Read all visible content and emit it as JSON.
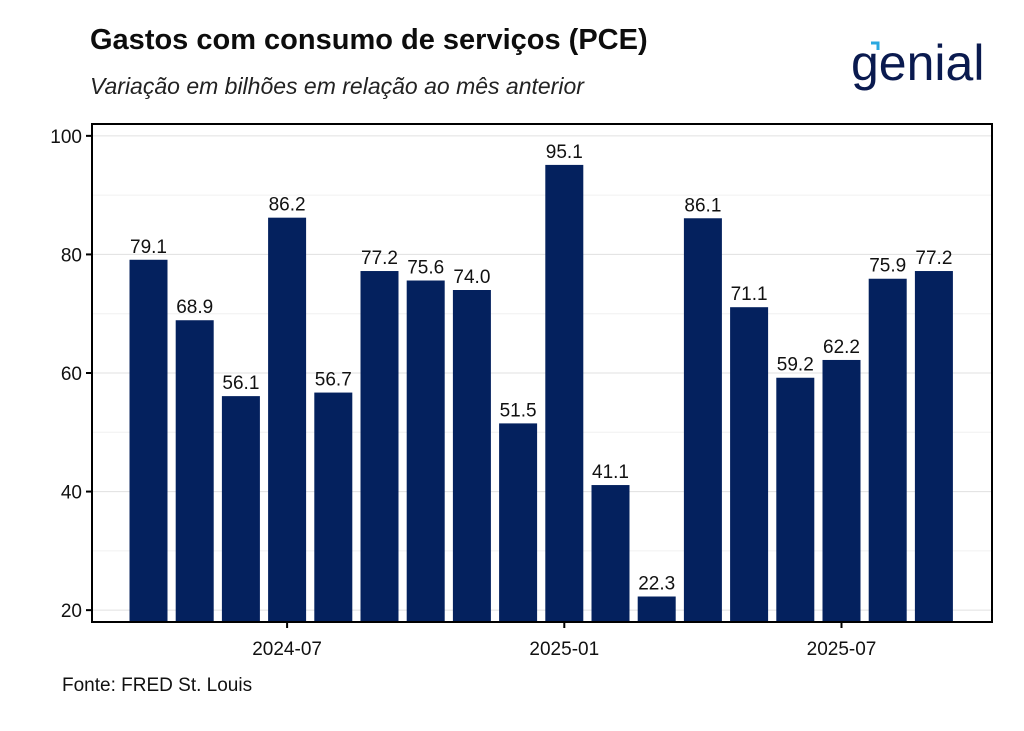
{
  "title": "Gastos com consumo de serviços (PCE)",
  "subtitle": "Variação em bilhões em relação ao mês anterior",
  "source": "Fonte: FRED St. Louis",
  "logo_text": "genial",
  "colors": {
    "bar": "#04215e",
    "logo": "#0a1a4f",
    "logo_accent": "#2aa8e0",
    "grid": "#e8e8e8"
  },
  "chart_data": {
    "type": "bar",
    "title": "Gastos com consumo de serviços (PCE)",
    "subtitle": "Variação em bilhões em relação ao mês anterior",
    "xlabel": "",
    "ylabel": "",
    "categories": [
      "2024-04",
      "2024-05",
      "2024-06",
      "2024-07",
      "2024-08",
      "2024-09",
      "2024-10",
      "2024-11",
      "2024-12",
      "2025-01",
      "2025-02",
      "2025-03",
      "2025-04",
      "2025-05",
      "2025-06",
      "2025-07",
      "2025-08",
      "2025-09"
    ],
    "values": [
      79.1,
      68.9,
      56.1,
      86.2,
      56.7,
      77.2,
      75.6,
      74.0,
      51.5,
      95.1,
      41.1,
      22.3,
      86.1,
      71.1,
      59.2,
      62.2,
      75.9,
      77.2
    ],
    "data_labels": [
      "79.1",
      "68.9",
      "56.1",
      "86.2",
      "56.7",
      "77.2",
      "75.6",
      "74.0",
      "51.5",
      "95.1",
      "41.1",
      "22.3",
      "86.1",
      "71.1",
      "59.2",
      "62.2",
      "75.9",
      "77.2"
    ],
    "ylim": [
      18,
      102
    ],
    "yticks": [
      "20",
      "40",
      "60",
      "80",
      "100"
    ],
    "ytick_values": [
      20,
      40,
      60,
      80,
      100
    ],
    "xticks": [
      "2024-07",
      "2025-01",
      "2025-07"
    ],
    "xtick_months": [
      "2024-07",
      "2025-01",
      "2025-07"
    ],
    "grid": true,
    "legend": "none"
  }
}
